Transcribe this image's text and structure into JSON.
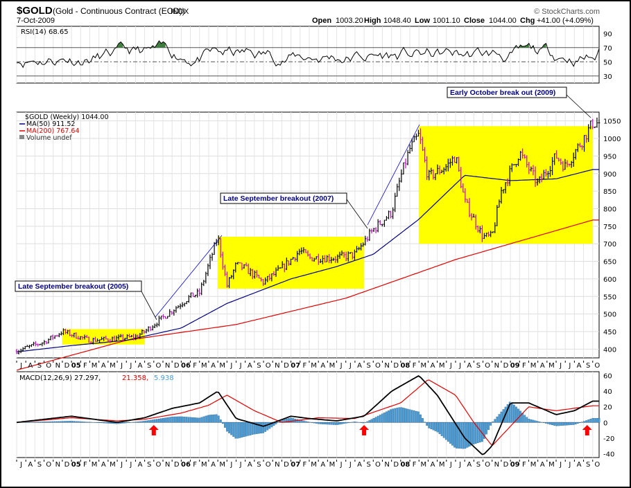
{
  "header": {
    "symbol": "$GOLD",
    "name": "(Gold - Continuous Contract (EOD))",
    "exchange": "INDX",
    "date": "7-Oct-2009",
    "source": "© StockCharts.com",
    "ohlc": {
      "open_label": "Open",
      "open": "1003.20",
      "high_label": "High",
      "high": "1048.40",
      "low_label": "Low",
      "low": "1001.10",
      "close_label": "Close",
      "close": "1044.00",
      "chg_label": "Chg",
      "chg": "+41.00 (+4.09%)"
    }
  },
  "legends": {
    "rsi": "RSI(14) 68.65",
    "price": "$GOLD (Weekly) 1044.00",
    "ma50": "MA(50) 911.52",
    "ma200": "MA(200) 767.64",
    "volume": "Volume undef",
    "macd_prefix": "MACD(12,26,9) 27.297,",
    "macd_signal": "21.358,",
    "macd_hist": "5.938"
  },
  "annotations": {
    "break_2005": "Late September breakout (2005)",
    "break_2007": "Late September breakout (2007)",
    "break_2009": "Early October break out (2009)"
  },
  "colors": {
    "price_up": "#000000",
    "price_down": "#cc00cc",
    "ma50": "#000080",
    "ma200": "#e00000",
    "box": "#ffff00",
    "macd_signal": "#e00000",
    "macd_hist": "#4a9fd8",
    "arrow_up": "#ff0000",
    "rsi_fill": "#3a7a3a",
    "annotation_text": "#000080"
  },
  "x_axis_labels": [
    "J",
    "A",
    "S",
    "O",
    "N",
    "D",
    "05",
    "F",
    "M",
    "A",
    "M",
    "J",
    "J",
    "A",
    "S",
    "O",
    "N",
    "D",
    "06",
    "F",
    "M",
    "A",
    "M",
    "J",
    "J",
    "A",
    "S",
    "O",
    "N",
    "D",
    "07",
    "F",
    "M",
    "A",
    "M",
    "J",
    "J",
    "A",
    "S",
    "O",
    "N",
    "D",
    "08",
    "F",
    "M",
    "A",
    "M",
    "J",
    "J",
    "A",
    "S",
    "O",
    "N",
    "D",
    "09",
    "F",
    "M",
    "A",
    "M",
    "J",
    "J",
    "A",
    "S",
    "O"
  ],
  "chart_data": [
    {
      "type": "line",
      "panel": "RSI",
      "y_ticks": [
        30,
        50,
        70,
        90
      ],
      "ylim": [
        20,
        100
      ],
      "reference_lines": [
        30,
        50,
        70
      ],
      "series": [
        {
          "name": "RSI(14)",
          "last": 68.65
        }
      ]
    },
    {
      "type": "line",
      "panel": "price",
      "y_ticks": [
        400,
        450,
        500,
        550,
        600,
        650,
        700,
        750,
        800,
        850,
        900,
        950,
        1000,
        1050
      ],
      "ylim": [
        375,
        1075
      ],
      "x_range": [
        "2004-07",
        "2009-10"
      ],
      "series": [
        {
          "name": "$GOLD (Weekly)",
          "last": 1044.0,
          "anchor_dates": [
            "2004-07",
            "2004-10",
            "2004-12",
            "2005-03",
            "2005-06",
            "2005-08",
            "2005-09",
            "2005-10",
            "2005-12",
            "2006-02",
            "2006-03",
            "2006-05",
            "2006-06",
            "2006-07",
            "2006-08",
            "2006-10",
            "2006-12",
            "2007-02",
            "2007-03",
            "2007-06",
            "2007-08",
            "2007-10",
            "2007-12",
            "2008-01",
            "2008-02",
            "2008-03",
            "2008-04",
            "2008-06",
            "2008-07",
            "2008-08",
            "2008-10",
            "2008-11",
            "2008-12",
            "2009-02",
            "2009-04",
            "2009-06",
            "2009-07",
            "2009-09",
            "2009-10"
          ],
          "anchor_values": [
            395,
            420,
            450,
            425,
            430,
            435,
            450,
            470,
            510,
            550,
            560,
            720,
            580,
            640,
            630,
            590,
            630,
            680,
            660,
            660,
            670,
            740,
            790,
            890,
            970,
            1010,
            890,
            920,
            950,
            820,
            720,
            720,
            850,
            960,
            870,
            950,
            920,
            1000,
            1044
          ]
        },
        {
          "name": "MA(50)",
          "last": 911.52,
          "anchor_dates": [
            "2004-07",
            "2005-01",
            "2005-07",
            "2006-01",
            "2006-06",
            "2007-01",
            "2007-06",
            "2007-10",
            "2008-03",
            "2008-08",
            "2009-01",
            "2009-06",
            "2009-10"
          ],
          "anchor_values": [
            392,
            410,
            425,
            460,
            530,
            600,
            635,
            670,
            770,
            895,
            880,
            885,
            911.52
          ]
        },
        {
          "name": "MA(200)",
          "last": 767.64,
          "anchor_dates": [
            "2004-07",
            "2005-07",
            "2006-07",
            "2007-07",
            "2008-07",
            "2009-10"
          ],
          "anchor_values": [
            340,
            425,
            470,
            545,
            655,
            767.64
          ]
        }
      ],
      "boxes": [
        {
          "from": "2004-12",
          "to": "2005-09",
          "y_from": 413,
          "y_to": 457
        },
        {
          "from": "2006-05",
          "to": "2007-09",
          "y_from": 572,
          "y_to": 720
        },
        {
          "from": "2008-03",
          "to": "2009-10",
          "y_from": 700,
          "y_to": 1035
        }
      ]
    },
    {
      "type": "bar",
      "panel": "MACD",
      "y_ticks": [
        -40,
        -20,
        0,
        20,
        40,
        60
      ],
      "ylim": [
        -45,
        65
      ],
      "series": [
        {
          "name": "MACD(12,26,9)",
          "last": 27.297,
          "anchor_dates": [
            "2004-07",
            "2005-01",
            "2005-06",
            "2005-09",
            "2005-12",
            "2006-03",
            "2006-05",
            "2006-07",
            "2006-10",
            "2007-01",
            "2007-03",
            "2007-06",
            "2007-09",
            "2007-12",
            "2008-03",
            "2008-05",
            "2008-08",
            "2008-10",
            "2008-11",
            "2009-01",
            "2009-03",
            "2009-06",
            "2009-08",
            "2009-10"
          ],
          "anchor_values": [
            0,
            8,
            0,
            6,
            18,
            25,
            40,
            5,
            -5,
            8,
            5,
            2,
            8,
            40,
            60,
            35,
            -20,
            -42,
            -30,
            25,
            25,
            10,
            15,
            27.297
          ]
        },
        {
          "name": "signal",
          "last": 21.358,
          "anchor_dates": [
            "2004-07",
            "2005-01",
            "2005-06",
            "2005-09",
            "2006-01",
            "2006-04",
            "2006-06",
            "2006-09",
            "2006-12",
            "2007-04",
            "2007-08",
            "2008-01",
            "2008-04",
            "2008-07",
            "2008-09",
            "2008-11",
            "2009-01",
            "2009-03",
            "2009-06",
            "2009-10"
          ],
          "anchor_values": [
            0,
            6,
            2,
            4,
            12,
            22,
            35,
            15,
            0,
            6,
            5,
            25,
            55,
            35,
            0,
            -30,
            -5,
            20,
            15,
            21.358
          ]
        },
        {
          "name": "histogram",
          "last": 5.938
        }
      ],
      "arrows": [
        "2005-10",
        "2007-09",
        "2009-10"
      ]
    }
  ]
}
